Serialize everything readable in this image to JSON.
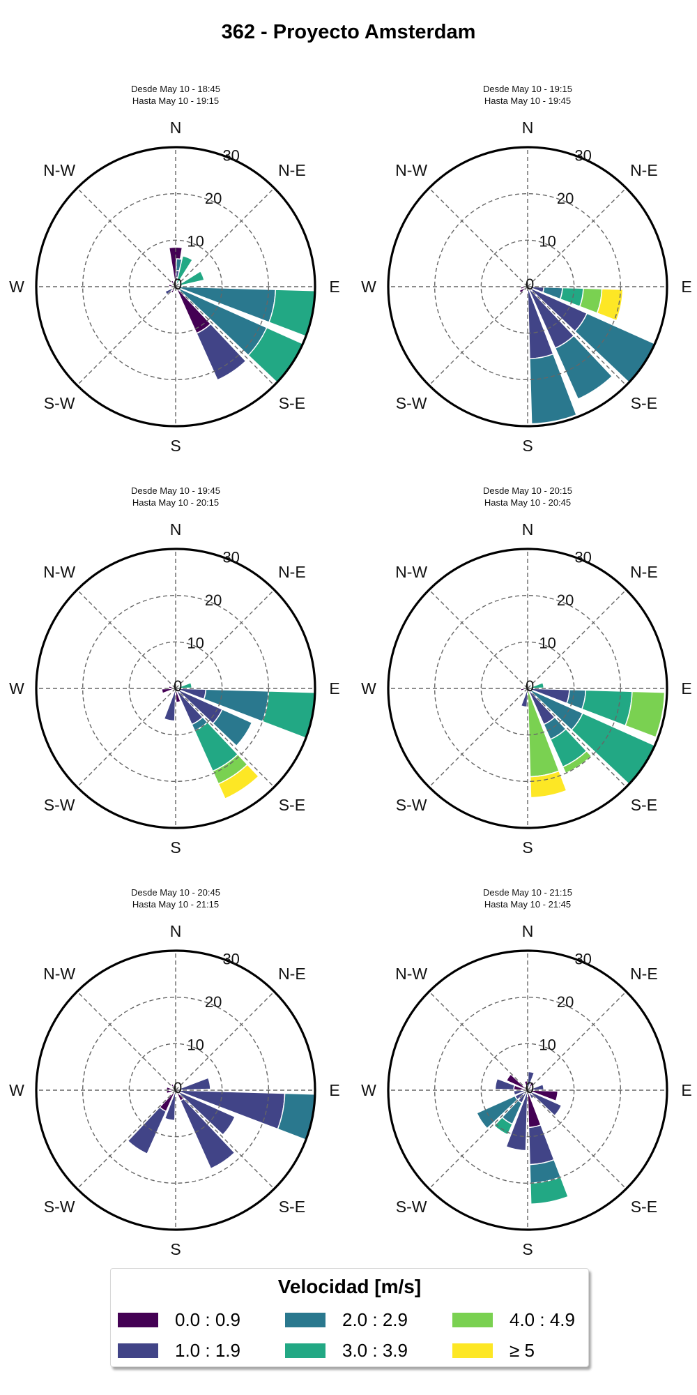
{
  "title": "362 - Proyecto Amsterdam",
  "chart_data": [
    {
      "type": "windrose",
      "subtitle": [
        "Desde May 10 - 18:45",
        "Hasta May 10 - 19:15"
      ],
      "directions": [
        "N",
        "N-E",
        "E",
        "S-E",
        "S",
        "S-W",
        "W",
        "N-W"
      ],
      "rlim": [
        0,
        30
      ],
      "rticks": [
        0,
        10,
        20,
        30
      ],
      "sectors": [
        {
          "dir": 0,
          "stack": [
            8.5
          ]
        },
        {
          "dir": 11.25,
          "stack": [
            2,
            3.5,
            6
          ]
        },
        {
          "dir": 22.5,
          "stack": [
            0,
            0,
            0,
            6.8
          ]
        },
        {
          "dir": 67.5,
          "stack": [
            0,
            0,
            0,
            6.3
          ]
        },
        {
          "dir": 101.25,
          "stack": [
            0,
            0,
            21.5,
            31
          ]
        },
        {
          "dir": 123.75,
          "stack": [
            0,
            0,
            21.5,
            30.5
          ]
        },
        {
          "dir": 146.25,
          "stack": [
            11,
            22
          ]
        },
        {
          "dir": 213.75,
          "stack": [
            1.5
          ]
        },
        {
          "dir": 236.25,
          "stack": [
            0.8,
            2.5
          ]
        },
        {
          "dir": 281.25,
          "stack": [
            1.5
          ]
        },
        {
          "dir": 326.25,
          "stack": [
            1.5
          ]
        }
      ]
    },
    {
      "type": "windrose",
      "subtitle": [
        "Desde May 10 - 19:15",
        "Hasta May 10 - 19:45"
      ],
      "directions": [
        "N",
        "N-E",
        "E",
        "S-E",
        "S",
        "S-W",
        "W",
        "N-W"
      ],
      "rlim": [
        0,
        30
      ],
      "rticks": [
        0,
        10,
        20,
        30
      ],
      "sectors": [
        {
          "dir": 101.25,
          "stack": [
            0,
            3.5,
            7.5,
            12,
            16,
            20.5
          ]
        },
        {
          "dir": 123.75,
          "stack": [
            0,
            14,
            31
          ]
        },
        {
          "dir": 146.25,
          "stack": [
            0,
            14.5,
            26.5
          ]
        },
        {
          "dir": 168.75,
          "stack": [
            0,
            15.5,
            29.5
          ]
        },
        {
          "dir": 236.25,
          "stack": [
            2
          ]
        },
        {
          "dir": 258.75,
          "stack": [
            1.5
          ]
        }
      ]
    },
    {
      "type": "windrose",
      "subtitle": [
        "Desde May 10 - 19:45",
        "Hasta May 10 - 20:15"
      ],
      "directions": [
        "N",
        "N-E",
        "E",
        "S-E",
        "S",
        "S-W",
        "W",
        "N-W"
      ],
      "rlim": [
        0,
        30
      ],
      "rticks": [
        0,
        10,
        20,
        30
      ],
      "sectors": [
        {
          "dir": 78.75,
          "stack": [
            0,
            0,
            0,
            3.5
          ]
        },
        {
          "dir": 101.25,
          "stack": [
            0,
            6.5,
            20,
            30
          ]
        },
        {
          "dir": 123.75,
          "stack": [
            0,
            11,
            18
          ]
        },
        {
          "dir": 146.25,
          "stack": [
            0,
            8.5,
            10,
            19.5,
            22.5,
            26
          ]
        },
        {
          "dir": 168.75,
          "stack": [
            3
          ]
        },
        {
          "dir": 191.25,
          "stack": [
            0,
            7
          ]
        },
        {
          "dir": 258.75,
          "stack": [
            3
          ]
        },
        {
          "dir": 281.25,
          "stack": [
            1.5
          ]
        }
      ]
    },
    {
      "type": "windrose",
      "subtitle": [
        "Desde May 10 - 20:15",
        "Hasta May 10 - 20:45"
      ],
      "directions": [
        "N",
        "N-E",
        "E",
        "S-E",
        "S",
        "S-W",
        "W",
        "N-W"
      ],
      "rlim": [
        0,
        30
      ],
      "rticks": [
        0,
        10,
        20,
        30
      ],
      "sectors": [
        {
          "dir": 78.75,
          "stack": [
            0,
            0,
            0,
            3.5
          ]
        },
        {
          "dir": 101.25,
          "stack": [
            0,
            9,
            12.5,
            22.5,
            29.5
          ]
        },
        {
          "dir": 123.75,
          "stack": [
            0,
            0,
            13,
            30
          ]
        },
        {
          "dir": 146.25,
          "stack": [
            0,
            8.5,
            12,
            18.5,
            20
          ]
        },
        {
          "dir": 168.75,
          "stack": [
            0,
            0,
            0,
            0,
            19,
            23.5
          ]
        },
        {
          "dir": 191.25,
          "stack": [
            0,
            4
          ]
        },
        {
          "dir": 258.75,
          "stack": [
            1.5
          ]
        },
        {
          "dir": 281.25,
          "stack": [
            1
          ]
        }
      ]
    },
    {
      "type": "windrose",
      "subtitle": [
        "Desde May 10 - 20:45",
        "Hasta May 10 - 21:15"
      ],
      "directions": [
        "N",
        "N-E",
        "E",
        "S-E",
        "S",
        "S-W",
        "W",
        "N-W"
      ],
      "rlim": [
        0,
        30
      ],
      "rticks": [
        0,
        10,
        20,
        30
      ],
      "sectors": [
        {
          "dir": 78.75,
          "stack": [
            0,
            7.5
          ]
        },
        {
          "dir": 101.25,
          "stack": [
            0,
            23.5,
            30.5
          ]
        },
        {
          "dir": 123.75,
          "stack": [
            0,
            14
          ]
        },
        {
          "dir": 146.25,
          "stack": [
            2.5,
            18.5
          ]
        },
        {
          "dir": 191.25,
          "stack": [
            0,
            6.5
          ]
        },
        {
          "dir": 213.75,
          "stack": [
            5,
            15
          ]
        },
        {
          "dir": 258.75,
          "stack": [
            2
          ]
        },
        {
          "dir": 281.25,
          "stack": [
            2
          ]
        },
        {
          "dir": 326.25,
          "stack": [
            1.5
          ]
        }
      ]
    },
    {
      "type": "windrose",
      "subtitle": [
        "Desde May 10 - 21:15",
        "Hasta May 10 - 21:45"
      ],
      "directions": [
        "N",
        "N-E",
        "E",
        "S-E",
        "S",
        "S-W",
        "W",
        "N-W"
      ],
      "rlim": [
        0,
        30
      ],
      "rticks": [
        0,
        10,
        20,
        30
      ],
      "sectors": [
        {
          "dir": 11.25,
          "stack": [
            0,
            4
          ]
        },
        {
          "dir": 33.75,
          "stack": [
            2
          ]
        },
        {
          "dir": 78.75,
          "stack": [
            0,
            3.5
          ]
        },
        {
          "dir": 101.25,
          "stack": [
            6.5
          ]
        },
        {
          "dir": 123.75,
          "stack": [
            0,
            8
          ]
        },
        {
          "dir": 146.25,
          "stack": [
            0,
            2
          ]
        },
        {
          "dir": 168.75,
          "stack": [
            8,
            16,
            20,
            24.5
          ]
        },
        {
          "dir": 191.25,
          "stack": [
            0,
            13
          ]
        },
        {
          "dir": 213.75,
          "stack": [
            0,
            3,
            8,
            10.5
          ]
        },
        {
          "dir": 236.25,
          "stack": [
            0,
            3,
            12
          ]
        },
        {
          "dir": 258.75,
          "stack": [
            0,
            3
          ]
        },
        {
          "dir": 281.25,
          "stack": [
            3,
            7
          ]
        },
        {
          "dir": 303.75,
          "stack": [
            5
          ]
        },
        {
          "dir": 348.75,
          "stack": [
            2
          ]
        }
      ]
    }
  ],
  "legend": {
    "title": "Velocidad [m/s]",
    "items": [
      {
        "label": "0.0 : 0.9",
        "color": "#440154"
      },
      {
        "label": "1.0 : 1.9",
        "color": "#414487"
      },
      {
        "label": "2.0 : 2.9",
        "color": "#2a788e"
      },
      {
        "label": "3.0 : 3.9",
        "color": "#22a884"
      },
      {
        "label": "4.0 : 4.9",
        "color": "#7ad151"
      },
      {
        "label": "≥  5",
        "color": "#fde725"
      }
    ]
  }
}
